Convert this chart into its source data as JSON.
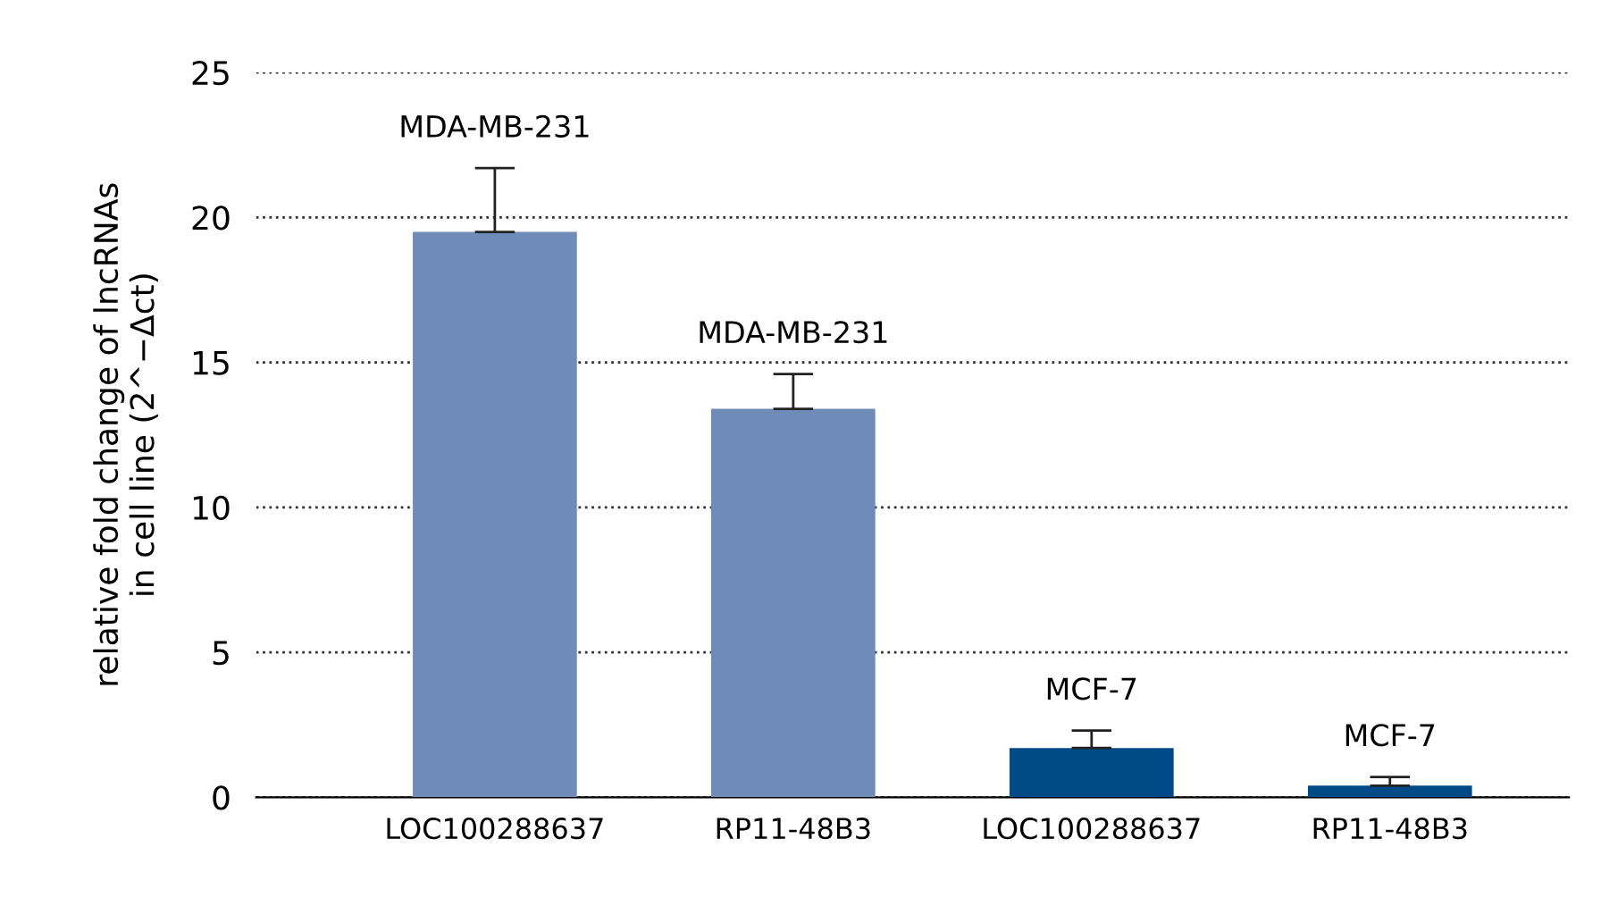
{
  "chart_data": {
    "type": "bar",
    "ylabel": "relative fold change of lncRNAs\nin cell line (2^−Δct)",
    "categories": [
      "LOC100288637",
      "RP11-48B3",
      "LOC100288637",
      "RP11-48B3"
    ],
    "values": [
      19.5,
      13.4,
      1.7,
      0.4
    ],
    "colors": [
      "#6f8cb8",
      "#6f8cb8",
      "#004a87",
      "#004a87"
    ],
    "errors": [
      [
        19.5,
        21.7
      ],
      [
        13.4,
        14.6
      ],
      [
        1.7,
        2.3
      ],
      [
        0.4,
        0.7
      ]
    ],
    "value_labels": [
      "MDA-MB-231",
      "MDA-MB-231",
      "MCF-7",
      "MCF-7"
    ],
    "ylim": [
      0,
      25
    ],
    "yticks": [
      0,
      5,
      10,
      15,
      20,
      25
    ],
    "grid": "y",
    "line_style": "dotted"
  }
}
